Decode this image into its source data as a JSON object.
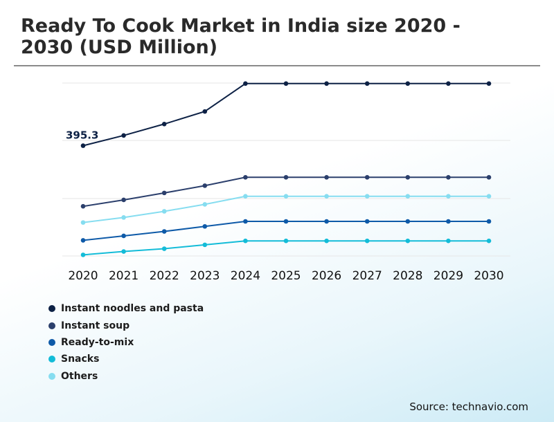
{
  "title": "Ready To Cook Market in India size 2020 - 2030 (USD Million)",
  "source": "Source: technavio.com",
  "chart_data": {
    "type": "line",
    "title": "Ready To Cook Market in India size 2020 - 2030 (USD Million)",
    "x": [
      "2020",
      "2021",
      "2022",
      "2023",
      "2024",
      "2025",
      "2026",
      "2027",
      "2028",
      "2029",
      "2030"
    ],
    "ylim": [
      0,
      620
    ],
    "grid": true,
    "legend_position": "bottom-left",
    "annotations": [
      {
        "series": "Instant noodles and pasta",
        "x": "2020",
        "text": "395.3"
      }
    ],
    "series": [
      {
        "name": "Instant noodles and pasta",
        "color": "#0d2145",
        "values": [
          395.3,
          432,
          473,
          518,
          618,
          618,
          618,
          618,
          618,
          618,
          618
        ]
      },
      {
        "name": "Instant soup",
        "color": "#2b3f6c",
        "values": [
          178,
          201,
          226,
          252,
          282,
          282,
          282,
          282,
          282,
          282,
          282
        ]
      },
      {
        "name": "Ready-to-mix",
        "color": "#0e5aa8",
        "values": [
          56,
          72,
          88,
          106,
          124,
          124,
          124,
          124,
          124,
          124,
          124
        ]
      },
      {
        "name": "Snacks",
        "color": "#13bcd8",
        "values": [
          4,
          16,
          26,
          40,
          54,
          54,
          54,
          54,
          54,
          54,
          54
        ]
      },
      {
        "name": "Others",
        "color": "#86ddf0",
        "values": [
          120,
          138,
          160,
          185,
          214,
          214,
          214,
          214,
          214,
          214,
          214
        ]
      }
    ]
  }
}
